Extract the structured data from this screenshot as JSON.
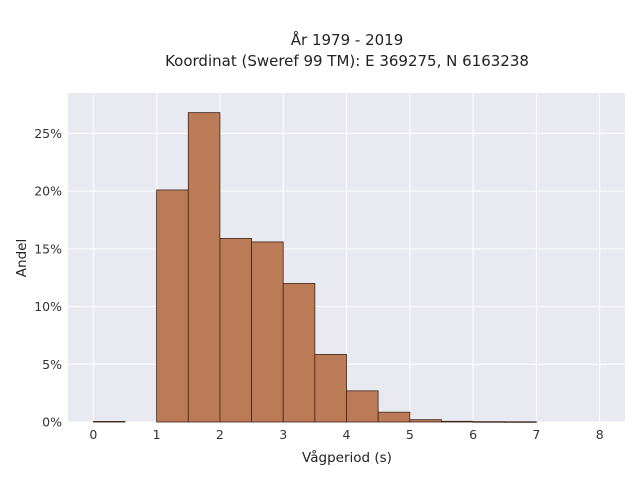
{
  "chart_data": {
    "type": "bar",
    "title_lines": [
      "År 1979 - 2019",
      "Koordinat (Sweref 99 TM): E 369275, N 6163238"
    ],
    "xlabel": "Vågperiod (s)",
    "ylabel": "Andel",
    "x_ticks": [
      "0",
      "1",
      "2",
      "3",
      "4",
      "5",
      "6",
      "7",
      "8"
    ],
    "y_ticks": [
      "0%",
      "5%",
      "10%",
      "15%",
      "20%",
      "25%"
    ],
    "xlim": [
      -0.4,
      8.4
    ],
    "ylim": [
      0,
      28.5
    ],
    "bin_width": 0.5,
    "bins": [
      {
        "x0": 0.0,
        "value": 0.05
      },
      {
        "x0": 0.5,
        "value": 0.0
      },
      {
        "x0": 1.0,
        "value": 20.1
      },
      {
        "x0": 1.5,
        "value": 26.8
      },
      {
        "x0": 2.0,
        "value": 15.9
      },
      {
        "x0": 2.5,
        "value": 15.6
      },
      {
        "x0": 3.0,
        "value": 12.0
      },
      {
        "x0": 3.5,
        "value": 5.85
      },
      {
        "x0": 4.0,
        "value": 2.7
      },
      {
        "x0": 4.5,
        "value": 0.85
      },
      {
        "x0": 5.0,
        "value": 0.2
      },
      {
        "x0": 5.5,
        "value": 0.06
      },
      {
        "x0": 6.0,
        "value": 0.03
      },
      {
        "x0": 6.5,
        "value": 0.02
      }
    ],
    "grid": true,
    "colors": {
      "bar": "#bc7b57",
      "bar_edge": "#3d2418",
      "plot_bg": "#e9e9f1",
      "grid": "#ffffff"
    }
  }
}
